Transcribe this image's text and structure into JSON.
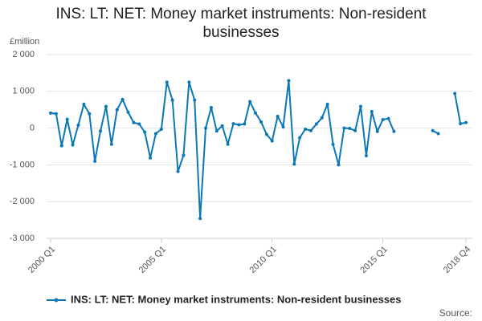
{
  "chart_data": {
    "type": "line",
    "title": "INS: LT: NET: Money market instruments: Non-resident businesses",
    "y_label": "£million",
    "source": "Source:",
    "categories": [
      "2000 Q1",
      null,
      null,
      null,
      null,
      null,
      null,
      null,
      null,
      null,
      null,
      null,
      null,
      null,
      null,
      null,
      null,
      null,
      null,
      null,
      "2005 Q1",
      null,
      null,
      null,
      null,
      null,
      null,
      null,
      null,
      null,
      null,
      null,
      null,
      null,
      null,
      null,
      null,
      null,
      null,
      null,
      "2010 Q1",
      null,
      null,
      null,
      null,
      null,
      null,
      null,
      null,
      null,
      null,
      null,
      null,
      null,
      null,
      null,
      null,
      null,
      null,
      null,
      "2015 Q1",
      null,
      null,
      null,
      null,
      null,
      null,
      null,
      null,
      null,
      null,
      null,
      null,
      null,
      null,
      "2018 Q4"
    ],
    "series": [
      {
        "name": "INS: LT: NET: Money market instruments: Non-resident businesses",
        "color": "#0a77b6",
        "values": [
          410,
          390,
          -480,
          240,
          -460,
          80,
          650,
          390,
          -900,
          -80,
          590,
          -440,
          500,
          780,
          430,
          150,
          110,
          -110,
          -810,
          -150,
          -30,
          1250,
          760,
          -1180,
          -740,
          1250,
          760,
          -2460,
          0,
          560,
          -80,
          60,
          -440,
          120,
          90,
          110,
          720,
          410,
          170,
          -170,
          -350,
          320,
          30,
          1290,
          -980,
          -260,
          -30,
          -70,
          110,
          280,
          650,
          -440,
          -1000,
          0,
          -10,
          -70,
          590,
          -750,
          450,
          -90,
          230,
          260,
          -90,
          null,
          null,
          null,
          null,
          null,
          null,
          -70,
          -150,
          null,
          null,
          940,
          120,
          150
        ]
      }
    ],
    "ylim": [
      -3000,
      2000
    ],
    "yticks": [
      {
        "value": -3000,
        "label": "-3 000"
      },
      {
        "value": -2000,
        "label": "-2 000"
      },
      {
        "value": -1000,
        "label": "-1 000"
      },
      0,
      {
        "value": 1000,
        "label": "1 000"
      },
      {
        "value": 2000,
        "label": "2 000"
      }
    ],
    "grid": true
  }
}
